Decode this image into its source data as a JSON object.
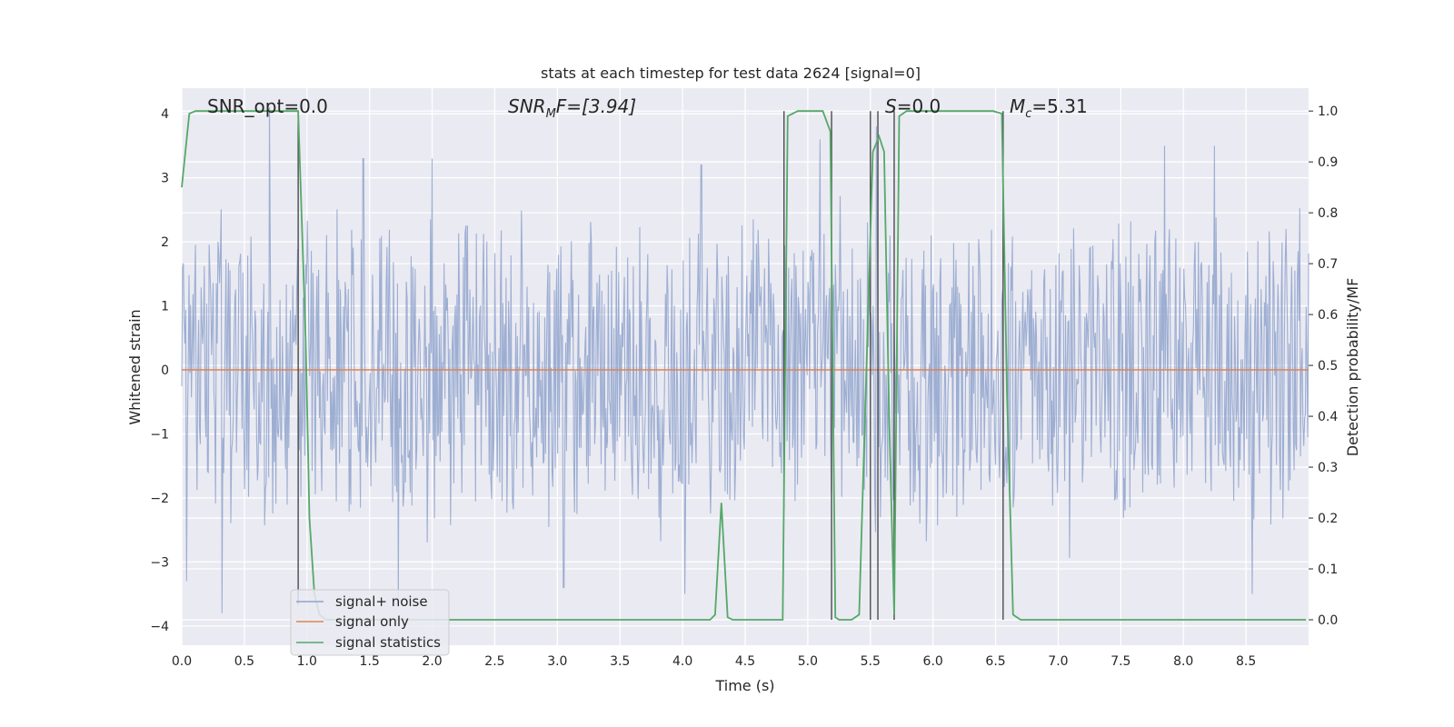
{
  "chart_data": {
    "type": "line",
    "title": "stats at each timestep for test data 2624 [signal=0]",
    "xlabel": "Time (s)",
    "ylabel": "Whitened strain",
    "ylabel_right": "Detection probability/MF",
    "xlim": [
      0.0,
      9.0
    ],
    "ylim": [
      -4.3,
      4.4
    ],
    "ylim_right": [
      -0.05,
      1.045
    ],
    "x_ticks": [
      "0.0",
      "0.5",
      "1.0",
      "1.5",
      "2.0",
      "2.5",
      "3.0",
      "3.5",
      "4.0",
      "4.5",
      "5.0",
      "5.5",
      "6.0",
      "6.5",
      "7.0",
      "7.5",
      "8.0",
      "8.5"
    ],
    "y_ticks": [
      "4",
      "3",
      "2",
      "1",
      "0",
      "−1",
      "−2",
      "−3",
      "−4"
    ],
    "y_right_ticks": [
      "1.0",
      "0.9",
      "0.8",
      "0.7",
      "0.6",
      "0.5",
      "0.4",
      "0.3",
      "0.2",
      "0.1",
      "0.0"
    ],
    "grid": true,
    "legend_position": "lower-left",
    "annotations": {
      "snr_opt": "SNR_opt=0.0",
      "snr_mf_main": "SNR",
      "snr_mf_sub": "M",
      "snr_mf_rest": "F=[3.94]",
      "s_main": "S",
      "s_rest": "=0.0",
      "mc_main": "M",
      "mc_sub": "c",
      "mc_rest": "=5.31"
    },
    "series": [
      {
        "name": "signal+ noise",
        "color": "#8fa3cc",
        "style": "dense noise, envelope approx ±2.2 with spikes to ±3.8",
        "peak_spikes": [
          {
            "x": 0.04,
            "y": -3.3
          },
          {
            "x": 0.32,
            "y": -3.8
          },
          {
            "x": 0.7,
            "y": 4.1
          },
          {
            "x": 1.45,
            "y": 3.3
          },
          {
            "x": 1.73,
            "y": -3.7
          },
          {
            "x": 2.0,
            "y": 3.3
          },
          {
            "x": 3.05,
            "y": -3.4
          },
          {
            "x": 4.02,
            "y": -3.5
          },
          {
            "x": 4.15,
            "y": 3.2
          },
          {
            "x": 5.1,
            "y": 3.6
          },
          {
            "x": 5.55,
            "y": 3.8
          },
          {
            "x": 7.85,
            "y": 3.5
          },
          {
            "x": 8.25,
            "y": 3.5
          },
          {
            "x": 8.55,
            "y": -3.5
          }
        ]
      },
      {
        "name": "signal only",
        "color": "#dd8452",
        "x": [
          0.0,
          9.0
        ],
        "y": [
          0.0,
          0.0
        ]
      },
      {
        "name": "signal statistics",
        "color": "#55a868",
        "axis": "right",
        "x": [
          0.0,
          0.06,
          0.11,
          0.93,
          0.99,
          1.02,
          1.06,
          1.1,
          1.15,
          1.2,
          2.2,
          4.22,
          4.26,
          4.31,
          4.36,
          4.4,
          4.8,
          4.84,
          4.92,
          5.12,
          5.18,
          5.22,
          5.25,
          5.35,
          5.41,
          5.52,
          5.57,
          5.61,
          5.65,
          5.69,
          5.73,
          5.79,
          6.48,
          6.55,
          6.59,
          6.64,
          6.7,
          8.98
        ],
        "y": [
          0.85,
          0.995,
          1.0,
          1.0,
          0.55,
          0.2,
          0.05,
          0.01,
          0.0,
          0.0,
          0.0,
          0.0,
          0.01,
          0.23,
          0.005,
          0.0,
          0.0,
          0.99,
          1.0,
          1.0,
          0.96,
          0.005,
          0.0,
          0.0,
          0.01,
          0.92,
          0.95,
          0.92,
          0.4,
          0.01,
          0.99,
          1.0,
          1.0,
          0.995,
          0.45,
          0.01,
          0.0,
          0.0
        ]
      }
    ],
    "vertical_lines": [
      {
        "x": 0.93,
        "y_top": 1.0,
        "y_bottom": 0.03
      },
      {
        "x": 4.81,
        "y_top": 1.0,
        "y_bottom": 0.22
      },
      {
        "x": 5.19,
        "y_top": 1.0,
        "y_bottom": 0.0
      },
      {
        "x": 5.5,
        "y_top": 1.0,
        "y_bottom": 0.0
      },
      {
        "x": 5.56,
        "y_top": 1.0,
        "y_bottom": 0.0
      },
      {
        "x": 5.69,
        "y_top": 1.0,
        "y_bottom": 0.0
      },
      {
        "x": 6.56,
        "y_top": 1.0,
        "y_bottom": 0.0
      }
    ],
    "legend": [
      "signal+ noise",
      "signal only",
      "signal statistics"
    ]
  }
}
